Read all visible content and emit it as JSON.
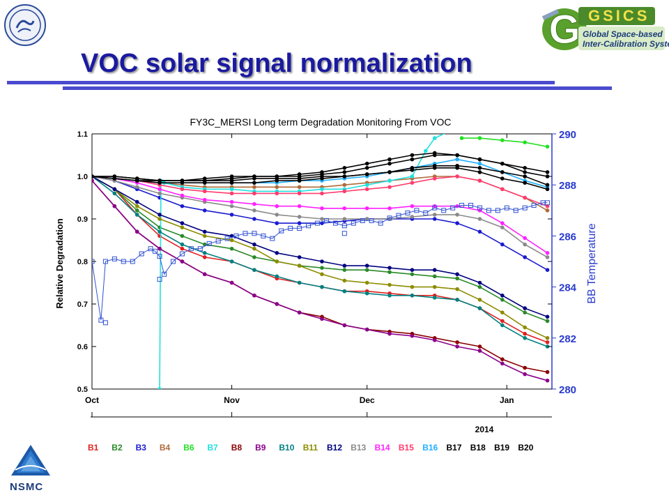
{
  "slide": {
    "title": "VOC solar signal normalization",
    "accent": "#1a1aa0",
    "rule_color": "#4a4acf"
  },
  "logos": {
    "top_left": "cma-seal-icon",
    "top_right": {
      "mark": "GSICS",
      "line1": "Global Space-based",
      "line2": "Inter-Calibration System"
    },
    "bottom_left": {
      "mark": "NSMC"
    }
  },
  "chart_data": {
    "type": "line",
    "title": "FY3C_MERSI Long term Degradation Monitoring From VOC",
    "ylabel": "Relative Degradation",
    "y2label": "BB Temperature",
    "ylim": [
      0.5,
      1.1
    ],
    "y2lim": [
      280,
      290
    ],
    "yticks": [
      "0.5",
      "0.6",
      "0.7",
      "0.8",
      "0.9",
      "1.0",
      "1.1"
    ],
    "y2ticks": [
      "280",
      "282",
      "284",
      "286",
      "288",
      "290"
    ],
    "xlim": [
      0,
      102
    ],
    "xticks": [
      {
        "label": "Oct",
        "x": 0
      },
      {
        "label": "Nov",
        "x": 31
      },
      {
        "label": "Dec",
        "x": 61
      },
      {
        "label": "Jan",
        "x": 92
      }
    ],
    "year_label": "2014",
    "grid": false,
    "bands": [
      {
        "name": "B1",
        "color": "#e02020"
      },
      {
        "name": "B2",
        "color": "#2a8a2a"
      },
      {
        "name": "B3",
        "color": "#1a1ad0"
      },
      {
        "name": "B4",
        "color": "#b06a3a"
      },
      {
        "name": "B6",
        "color": "#22e022"
      },
      {
        "name": "B7",
        "color": "#22e0e0"
      },
      {
        "name": "B8",
        "color": "#8b0000"
      },
      {
        "name": "B9",
        "color": "#8b008b"
      },
      {
        "name": "B10",
        "color": "#008080"
      },
      {
        "name": "B11",
        "color": "#8c8c00"
      },
      {
        "name": "B12",
        "color": "#000080"
      },
      {
        "name": "B13",
        "color": "#8a8a8a"
      },
      {
        "name": "B14",
        "color": "#ff22ff"
      },
      {
        "name": "B15",
        "color": "#ff3c6e"
      },
      {
        "name": "B16",
        "color": "#22b0ff"
      },
      {
        "name": "B17",
        "color": "#000000"
      },
      {
        "name": "B18",
        "color": "#000000"
      },
      {
        "name": "B19",
        "color": "#000000"
      },
      {
        "name": "B20",
        "color": "#000000"
      }
    ],
    "series": [
      {
        "name": "B1",
        "color": "#e02020",
        "x": [
          0,
          5,
          10,
          15,
          20,
          25,
          31,
          36,
          41,
          46,
          51,
          56,
          61,
          66,
          71,
          76,
          81,
          86,
          91,
          96,
          101
        ],
        "y": [
          1.0,
          0.97,
          0.91,
          0.86,
          0.83,
          0.81,
          0.8,
          0.78,
          0.76,
          0.75,
          0.74,
          0.73,
          0.73,
          0.725,
          0.72,
          0.72,
          0.71,
          0.69,
          0.66,
          0.63,
          0.61
        ]
      },
      {
        "name": "B2",
        "color": "#2a8a2a",
        "x": [
          0,
          5,
          10,
          15,
          20,
          25,
          31,
          36,
          41,
          46,
          51,
          56,
          61,
          66,
          71,
          76,
          81,
          86,
          91,
          96,
          101
        ],
        "y": [
          1.0,
          0.97,
          0.92,
          0.88,
          0.86,
          0.84,
          0.83,
          0.81,
          0.8,
          0.79,
          0.785,
          0.78,
          0.78,
          0.775,
          0.77,
          0.765,
          0.76,
          0.74,
          0.71,
          0.68,
          0.66
        ]
      },
      {
        "name": "B3",
        "color": "#1a1ad0",
        "x": [
          0,
          5,
          10,
          15,
          20,
          25,
          31,
          36,
          41,
          46,
          51,
          56,
          61,
          66,
          71,
          76,
          81,
          86,
          91,
          96,
          101
        ],
        "y": [
          1.0,
          0.99,
          0.97,
          0.95,
          0.93,
          0.92,
          0.91,
          0.9,
          0.89,
          0.89,
          0.89,
          0.895,
          0.9,
          0.9,
          0.9,
          0.9,
          0.89,
          0.87,
          0.84,
          0.81,
          0.78
        ]
      },
      {
        "name": "B4",
        "color": "#b06a3a",
        "x": [
          0,
          5,
          10,
          15,
          20,
          25,
          31,
          36,
          41,
          46,
          51,
          56,
          61,
          66,
          71,
          76,
          81,
          86,
          91,
          96,
          101
        ],
        "y": [
          1.0,
          0.995,
          0.99,
          0.985,
          0.98,
          0.975,
          0.975,
          0.975,
          0.975,
          0.975,
          0.975,
          0.98,
          0.985,
          0.99,
          0.995,
          1.0,
          1.0,
          0.99,
          0.97,
          0.95,
          0.92
        ]
      },
      {
        "name": "B6",
        "color": "#22e022",
        "x": [
          82,
          86,
          91,
          96,
          101
        ],
        "y": [
          1.09,
          1.09,
          1.085,
          1.08,
          1.07
        ]
      },
      {
        "name": "B7",
        "color": "#22e0e0",
        "x": [
          15,
          15.3,
          16,
          20,
          25,
          31,
          36,
          41,
          46,
          51,
          56,
          61,
          66,
          71,
          74,
          76,
          80
        ],
        "y": [
          0.5,
          0.99,
          0.985,
          0.975,
          0.97,
          0.97,
          0.965,
          0.965,
          0.965,
          0.97,
          0.97,
          0.98,
          0.99,
          1.0,
          1.06,
          1.09,
          1.11
        ]
      },
      {
        "name": "B8",
        "color": "#8b0000",
        "x": [
          0,
          5,
          10,
          15,
          20,
          25,
          31,
          36,
          41,
          46,
          51,
          56,
          61,
          66,
          71,
          76,
          81,
          86,
          91,
          96,
          101
        ],
        "y": [
          0.99,
          0.93,
          0.87,
          0.83,
          0.8,
          0.77,
          0.75,
          0.72,
          0.7,
          0.68,
          0.67,
          0.65,
          0.64,
          0.635,
          0.63,
          0.62,
          0.61,
          0.6,
          0.57,
          0.55,
          0.54
        ]
      },
      {
        "name": "B9",
        "color": "#8b008b",
        "x": [
          0,
          5,
          10,
          15,
          20,
          25,
          31,
          36,
          41,
          46,
          51,
          56,
          61,
          66,
          71,
          76,
          81,
          86,
          91,
          96,
          101
        ],
        "y": [
          0.99,
          0.93,
          0.87,
          0.83,
          0.8,
          0.77,
          0.75,
          0.72,
          0.7,
          0.68,
          0.665,
          0.65,
          0.64,
          0.63,
          0.625,
          0.615,
          0.6,
          0.59,
          0.56,
          0.535,
          0.52
        ]
      },
      {
        "name": "B10",
        "color": "#008080",
        "x": [
          0,
          5,
          10,
          15,
          20,
          25,
          31,
          36,
          41,
          46,
          51,
          56,
          61,
          66,
          71,
          76,
          81,
          86,
          91,
          96,
          101
        ],
        "y": [
          1.0,
          0.96,
          0.91,
          0.87,
          0.84,
          0.82,
          0.8,
          0.78,
          0.765,
          0.75,
          0.74,
          0.73,
          0.725,
          0.72,
          0.72,
          0.715,
          0.71,
          0.69,
          0.65,
          0.62,
          0.6
        ]
      },
      {
        "name": "B11",
        "color": "#8c8c00",
        "x": [
          0,
          5,
          10,
          15,
          20,
          25,
          31,
          36,
          41,
          46,
          51,
          56,
          61,
          66,
          71,
          76,
          81,
          86,
          91,
          96,
          101
        ],
        "y": [
          1.0,
          0.97,
          0.93,
          0.9,
          0.88,
          0.86,
          0.85,
          0.83,
          0.8,
          0.79,
          0.77,
          0.755,
          0.75,
          0.745,
          0.74,
          0.74,
          0.735,
          0.71,
          0.68,
          0.645,
          0.62
        ]
      },
      {
        "name": "B12",
        "color": "#000080",
        "x": [
          0,
          5,
          10,
          15,
          20,
          25,
          31,
          36,
          41,
          46,
          51,
          56,
          61,
          66,
          71,
          76,
          81,
          86,
          91,
          96,
          101
        ],
        "y": [
          1.0,
          0.97,
          0.94,
          0.91,
          0.89,
          0.87,
          0.86,
          0.84,
          0.82,
          0.81,
          0.8,
          0.79,
          0.79,
          0.785,
          0.78,
          0.78,
          0.77,
          0.75,
          0.72,
          0.69,
          0.67
        ]
      },
      {
        "name": "B13",
        "color": "#8a8a8a",
        "x": [
          0,
          5,
          10,
          15,
          20,
          25,
          31,
          36,
          41,
          46,
          51,
          56,
          61,
          66,
          71,
          76,
          81,
          86,
          91,
          96,
          101
        ],
        "y": [
          1.0,
          0.99,
          0.975,
          0.96,
          0.95,
          0.94,
          0.93,
          0.92,
          0.91,
          0.905,
          0.9,
          0.9,
          0.9,
          0.9,
          0.905,
          0.91,
          0.91,
          0.9,
          0.88,
          0.84,
          0.81
        ]
      },
      {
        "name": "B14",
        "color": "#ff22ff",
        "x": [
          0,
          5,
          10,
          15,
          20,
          25,
          31,
          36,
          41,
          46,
          51,
          56,
          61,
          66,
          71,
          76,
          81,
          86,
          91,
          96,
          101
        ],
        "y": [
          1.0,
          0.995,
          0.985,
          0.97,
          0.955,
          0.945,
          0.94,
          0.935,
          0.93,
          0.93,
          0.925,
          0.925,
          0.925,
          0.925,
          0.93,
          0.93,
          0.93,
          0.92,
          0.89,
          0.855,
          0.82
        ]
      },
      {
        "name": "B15",
        "color": "#ff3c6e",
        "x": [
          0,
          5,
          10,
          15,
          20,
          25,
          31,
          36,
          41,
          46,
          51,
          56,
          61,
          66,
          71,
          76,
          81,
          86,
          91,
          96,
          101
        ],
        "y": [
          1.0,
          0.995,
          0.99,
          0.98,
          0.97,
          0.965,
          0.96,
          0.96,
          0.96,
          0.96,
          0.96,
          0.965,
          0.97,
          0.975,
          0.985,
          0.995,
          1.0,
          0.99,
          0.97,
          0.95,
          0.93
        ]
      },
      {
        "name": "B16",
        "color": "#22b0ff",
        "x": [
          0,
          5,
          10,
          15,
          20,
          25,
          31,
          36,
          41,
          46,
          51,
          56,
          61,
          66,
          71,
          76,
          81,
          86,
          91,
          96,
          101
        ],
        "y": [
          1.0,
          0.995,
          0.99,
          0.985,
          0.985,
          0.985,
          0.985,
          0.985,
          0.985,
          0.99,
          0.99,
          0.995,
          1.0,
          1.01,
          1.02,
          1.03,
          1.04,
          1.03,
          1.01,
          0.99,
          0.975
        ]
      },
      {
        "name": "B17",
        "color": "#000000",
        "x": [
          0,
          5,
          10,
          15,
          20,
          25,
          31,
          36,
          41,
          46,
          51,
          56,
          61,
          66,
          71,
          76,
          81,
          86,
          91,
          96,
          101
        ],
        "y": [
          1.0,
          1.0,
          0.995,
          0.99,
          0.99,
          0.99,
          0.995,
          1.0,
          1.0,
          1.0,
          1.005,
          1.01,
          1.02,
          1.03,
          1.04,
          1.05,
          1.05,
          1.04,
          1.03,
          1.02,
          1.01
        ]
      },
      {
        "name": "B18",
        "color": "#000000",
        "x": [
          0,
          5,
          10,
          15,
          20,
          25,
          31,
          36,
          41,
          46,
          51,
          56,
          61,
          66,
          71,
          76,
          81,
          86,
          91,
          96,
          101
        ],
        "y": [
          1.0,
          1.0,
          0.995,
          0.99,
          0.99,
          0.995,
          1.0,
          1.0,
          1.0,
          1.005,
          1.01,
          1.02,
          1.03,
          1.04,
          1.05,
          1.055,
          1.05,
          1.04,
          1.03,
          1.01,
          1.0
        ]
      },
      {
        "name": "B19",
        "color": "#000000",
        "x": [
          0,
          5,
          10,
          15,
          20,
          25,
          31,
          36,
          41,
          46,
          51,
          56,
          61,
          66,
          71,
          76,
          81,
          86,
          91,
          96,
          101
        ],
        "y": [
          1.0,
          0.995,
          0.99,
          0.99,
          0.99,
          0.99,
          0.99,
          0.995,
          0.995,
          0.995,
          1.0,
          1.0,
          1.005,
          1.01,
          1.02,
          1.025,
          1.025,
          1.02,
          1.01,
          1.0,
          0.98
        ]
      },
      {
        "name": "B20",
        "color": "#000000",
        "x": [
          0,
          5,
          10,
          15,
          20,
          25,
          31,
          36,
          41,
          46,
          51,
          56,
          61,
          66,
          71,
          76,
          81,
          86,
          91,
          96,
          101
        ],
        "y": [
          1.0,
          0.995,
          0.99,
          0.985,
          0.985,
          0.985,
          0.985,
          0.985,
          0.99,
          0.99,
          0.995,
          1.0,
          1.005,
          1.01,
          1.015,
          1.02,
          1.02,
          1.01,
          0.995,
          0.985,
          0.97
        ]
      }
    ],
    "bb_temperature": {
      "name": "BB Temperature",
      "color": "#3050d0",
      "x": [
        0,
        2,
        3,
        5,
        7,
        9,
        11,
        13,
        14,
        15,
        16,
        18,
        20,
        22,
        24,
        26,
        28,
        30,
        32,
        34,
        36,
        38,
        40,
        42,
        44,
        46,
        48,
        50,
        52,
        54,
        56,
        58,
        60,
        62,
        64,
        66,
        68,
        70,
        72,
        74,
        76,
        78,
        80,
        82,
        84,
        86,
        88,
        90,
        92,
        94,
        96,
        98,
        100,
        101
      ],
      "y": [
        285.0,
        282.7,
        285.0,
        285.1,
        285.0,
        285.0,
        285.3,
        285.5,
        285.4,
        285.2,
        284.5,
        285.0,
        285.3,
        285.5,
        285.5,
        285.7,
        285.8,
        285.9,
        286.0,
        286.1,
        286.1,
        286.0,
        285.9,
        286.2,
        286.3,
        286.3,
        286.4,
        286.5,
        286.6,
        286.5,
        286.4,
        286.5,
        286.6,
        286.6,
        286.5,
        286.7,
        286.8,
        286.9,
        287.0,
        286.9,
        287.1,
        287.0,
        287.1,
        287.2,
        287.2,
        287.1,
        287.0,
        287.0,
        287.1,
        287.0,
        287.1,
        287.2,
        287.3,
        287.3
      ],
      "outliers": [
        {
          "x": 3,
          "y": 282.6
        },
        {
          "x": 15,
          "y": 284.3
        },
        {
          "x": 56,
          "y": 286.1
        }
      ]
    }
  }
}
